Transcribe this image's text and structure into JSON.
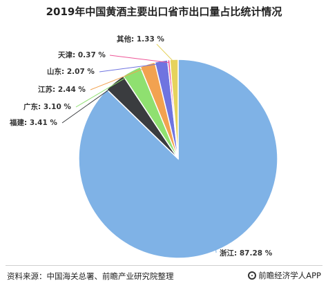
{
  "chart_data": {
    "type": "pie",
    "title": "2019年中国黄酒主要出口省市出口量占比统计情况",
    "categories": [
      "浙江",
      "福建",
      "广东",
      "江苏",
      "山东",
      "天津",
      "其他"
    ],
    "values": [
      87.28,
      3.41,
      3.1,
      2.44,
      2.07,
      0.37,
      1.33
    ],
    "labels": [
      "浙江: 87.28 %",
      "福建: 3.41 %",
      "广东: 3.10 %",
      "江苏: 2.44 %",
      "山东: 2.07 %",
      "天津: 0.37 %",
      "其他: 1.33 %"
    ],
    "colors": [
      "#7fb2e6",
      "#3a3c3f",
      "#8fe070",
      "#f2a250",
      "#6f74e0",
      "#ee5597",
      "#e6d35c"
    ],
    "legend": "none"
  },
  "footer": {
    "source": "资料来源：中国海关总署、前瞻产业研究院整理",
    "brand": "前瞻经济学人APP"
  }
}
